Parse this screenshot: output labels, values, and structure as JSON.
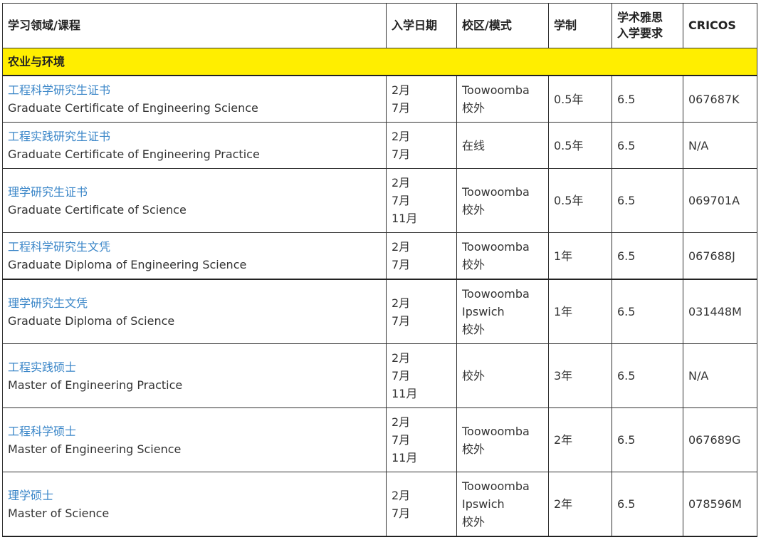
{
  "headers": {
    "course": "学习领域/课程",
    "intake": "入学日期",
    "campus": "校区/模式",
    "duration": "学制",
    "ielts_line1": "学术雅思",
    "ielts_line2": "入学要求",
    "cricos": "CRICOS"
  },
  "section": "农业与环境",
  "rows": [
    {
      "zh": "工程科学研究生证书",
      "en": "Graduate Certificate of Engineering Science",
      "intake": [
        "2月",
        "7月"
      ],
      "campus": [
        "Toowoomba",
        "校外"
      ],
      "duration": "0.5年",
      "ielts": "6.5",
      "cricos": "067687K"
    },
    {
      "zh": "工程实践研究生证书",
      "en": "Graduate Certificate of Engineering Practice",
      "intake": [
        "2月",
        "7月"
      ],
      "campus": [
        "在线"
      ],
      "duration": "0.5年",
      "ielts": "6.5",
      "cricos": "N/A"
    },
    {
      "zh": "理学研究生证书",
      "en": "Graduate Certificate of Science",
      "intake": [
        "2月",
        "7月",
        "11月"
      ],
      "campus": [
        "Toowoomba",
        "校外"
      ],
      "duration": "0.5年",
      "ielts": "6.5",
      "cricos": "069701A"
    },
    {
      "zh": "工程科学研究生文凭",
      "en": "Graduate Diploma of Engineering Science",
      "intake": [
        "2月",
        "7月"
      ],
      "campus": [
        "Toowoomba",
        "校外"
      ],
      "duration": "1年",
      "ielts": "6.5",
      "cricos": "067688J"
    },
    {
      "zh": "理学研究生文凭",
      "en": "Graduate Diploma of Science",
      "intake": [
        "2月",
        "7月"
      ],
      "campus": [
        "Toowoomba",
        "Ipswich",
        "校外"
      ],
      "duration": "1年",
      "ielts": "6.5",
      "cricos": "031448M"
    },
    {
      "zh": "工程实践硕士",
      "en": "Master of Engineering Practice",
      "intake": [
        "2月",
        "7月",
        "11月"
      ],
      "campus": [
        "校外"
      ],
      "duration": "3年",
      "ielts": "6.5",
      "cricos": "N/A"
    },
    {
      "zh": "工程科学硕士",
      "en": "Master of Engineering Science",
      "intake": [
        "2月",
        "7月",
        "11月"
      ],
      "campus": [
        "Toowoomba",
        "校外"
      ],
      "duration": "2年",
      "ielts": "6.5",
      "cricos": "067689G"
    },
    {
      "zh": "理学硕士",
      "en": "Master of Science",
      "intake": [
        "2月",
        "7月"
      ],
      "campus": [
        "Toowoomba",
        "Ipswich",
        "校外"
      ],
      "duration": "2年",
      "ielts": "6.5",
      "cricos": "078596M"
    }
  ]
}
